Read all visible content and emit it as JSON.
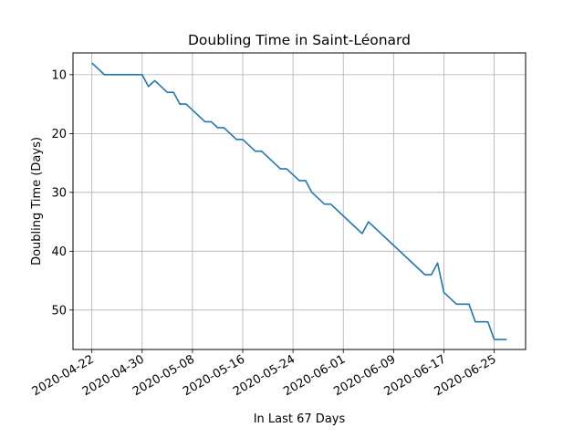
{
  "chart_data": {
    "type": "line",
    "title": "Doubling Time in  Saint-Léonard",
    "xlabel": "In Last 67 Days",
    "ylabel": "Doubling Time (Days)",
    "y_inverted": true,
    "ylim": [
      56.7,
      6.3
    ],
    "xlim": [
      "2020-04-19",
      "2020-06-30"
    ],
    "grid": true,
    "line_color": "#1f77b4",
    "x_ticks": [
      "2020-04-22",
      "2020-04-30",
      "2020-05-08",
      "2020-05-16",
      "2020-05-24",
      "2020-06-01",
      "2020-06-09",
      "2020-06-17",
      "2020-06-25"
    ],
    "y_ticks": [
      10,
      20,
      30,
      40,
      50
    ],
    "series": [
      {
        "points": [
          [
            "2020-04-22",
            8
          ],
          [
            "2020-04-24",
            10
          ],
          [
            "2020-04-30",
            10
          ],
          [
            "2020-05-01",
            12
          ],
          [
            "2020-05-02",
            11
          ],
          [
            "2020-05-04",
            13
          ],
          [
            "2020-05-05",
            13
          ],
          [
            "2020-05-06",
            15
          ],
          [
            "2020-05-07",
            15
          ],
          [
            "2020-05-10",
            18
          ],
          [
            "2020-05-11",
            18
          ],
          [
            "2020-05-12",
            19
          ],
          [
            "2020-05-13",
            19
          ],
          [
            "2020-05-15",
            21
          ],
          [
            "2020-05-16",
            21
          ],
          [
            "2020-05-18",
            23
          ],
          [
            "2020-05-19",
            23
          ],
          [
            "2020-05-22",
            26
          ],
          [
            "2020-05-23",
            26
          ],
          [
            "2020-05-25",
            28
          ],
          [
            "2020-05-26",
            28
          ],
          [
            "2020-05-27",
            30
          ],
          [
            "2020-05-29",
            32
          ],
          [
            "2020-05-30",
            32
          ],
          [
            "2020-06-04",
            37
          ],
          [
            "2020-06-05",
            35
          ],
          [
            "2020-06-14",
            44
          ],
          [
            "2020-06-15",
            44
          ],
          [
            "2020-06-16",
            42
          ],
          [
            "2020-06-17",
            47
          ],
          [
            "2020-06-19",
            49
          ],
          [
            "2020-06-21",
            49
          ],
          [
            "2020-06-22",
            52
          ],
          [
            "2020-06-24",
            52
          ],
          [
            "2020-06-25",
            55
          ],
          [
            "2020-06-27",
            55
          ]
        ]
      }
    ]
  }
}
